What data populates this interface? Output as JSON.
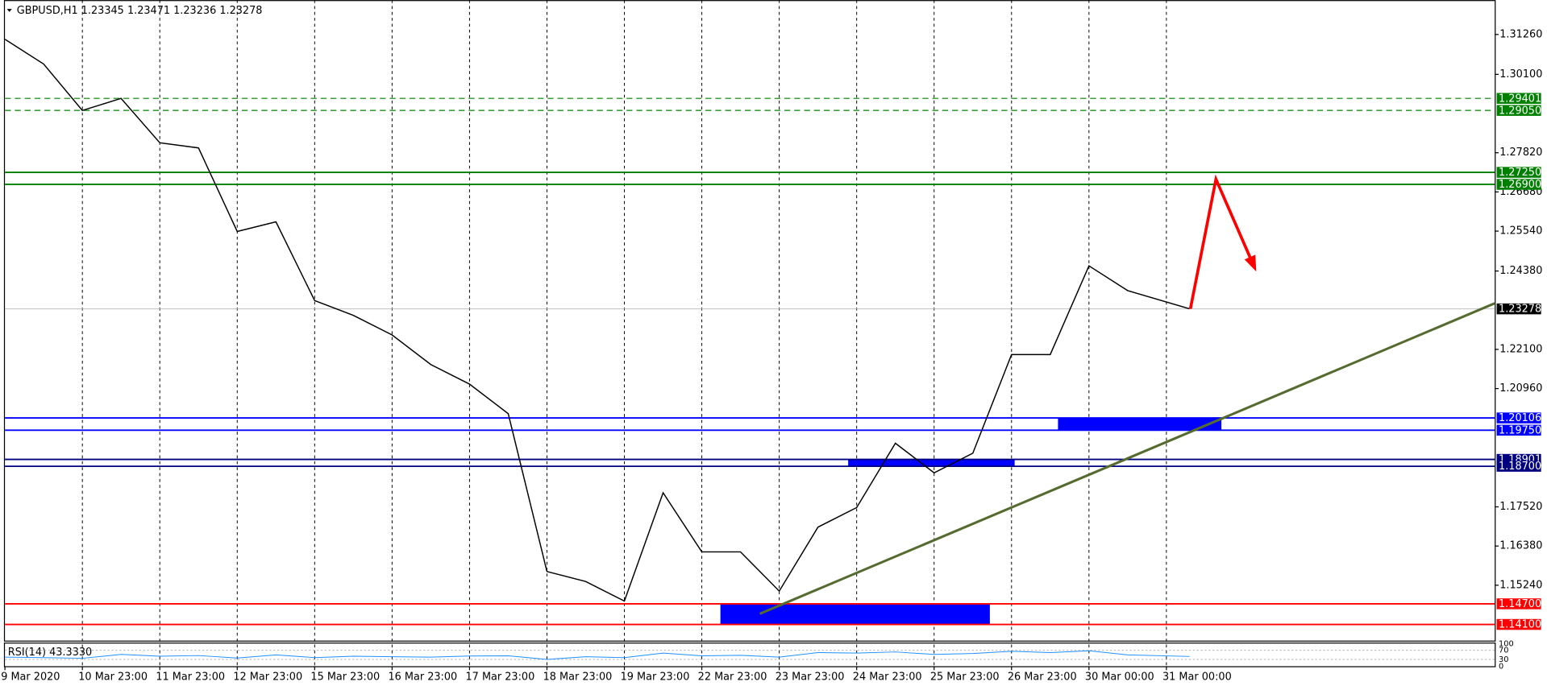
{
  "chart_data": {
    "type": "line",
    "title": "GBPUSD,H1  1.23345 1.23471 1.23236 1.23278",
    "x": [
      0,
      0.5,
      1,
      1.5,
      2,
      2.5,
      3,
      3.5,
      4,
      4.5,
      5,
      5.5,
      6,
      6.5,
      7,
      7.5,
      8,
      8.5,
      9,
      9.5,
      10,
      10.5,
      11,
      11.5,
      12,
      12.5,
      13,
      13.5,
      14,
      14.5,
      15.3
    ],
    "series": [
      {
        "color": "#000000",
        "values": [
          1.3112,
          1.304,
          1.2905,
          1.294,
          1.2811,
          1.2796,
          1.2553,
          1.2581,
          1.2352,
          1.2309,
          1.2252,
          1.2166,
          1.2109,
          1.2023,
          1.1564,
          1.1535,
          1.1478,
          1.1793,
          1.1621,
          1.1621,
          1.1507,
          1.1693,
          1.175,
          1.1937,
          1.1851,
          1.1908,
          1.2195,
          1.2195,
          1.2453,
          1.2381,
          1.2328
        ]
      }
    ],
    "xlim": [
      0,
      19.24
    ],
    "xticks": [
      {
        "value": 0,
        "label": "9 Mar 2020"
      },
      {
        "value": 1,
        "label": "10 Mar 23:00"
      },
      {
        "value": 2,
        "label": "11 Mar 23:00"
      },
      {
        "value": 3,
        "label": "12 Mar 23:00"
      },
      {
        "value": 4,
        "label": "15 Mar 23:00"
      },
      {
        "value": 5,
        "label": "16 Mar 23:00"
      },
      {
        "value": 6,
        "label": "17 Mar 23:00"
      },
      {
        "value": 7,
        "label": "18 Mar 23:00"
      },
      {
        "value": 8,
        "label": "19 Mar 23:00"
      },
      {
        "value": 9,
        "label": "22 Mar 23:00"
      },
      {
        "value": 10,
        "label": "23 Mar 23:00"
      },
      {
        "value": 11,
        "label": "24 Mar 23:00"
      },
      {
        "value": 12,
        "label": "25 Mar 23:00"
      },
      {
        "value": 13,
        "label": "26 Mar 23:00"
      },
      {
        "value": 14,
        "label": "30 Mar 00:00"
      },
      {
        "value": 15,
        "label": "31 Mar 00:00"
      }
    ],
    "ylim": [
      1.1363,
      1.3226
    ],
    "yticks": [
      {
        "value": 1.3126,
        "label": "1.31260"
      },
      {
        "value": 1.301,
        "label": "1.30100"
      },
      {
        "value": 1.2782,
        "label": "1.27820"
      },
      {
        "value": 1.2668,
        "label": "1.26680"
      },
      {
        "value": 1.2554,
        "label": "1.25540"
      },
      {
        "value": 1.2438,
        "label": "1.24380"
      },
      {
        "value": 1.221,
        "label": "1.22100"
      },
      {
        "value": 1.2096,
        "label": "1.20960"
      },
      {
        "value": 1.1752,
        "label": "1.17520"
      },
      {
        "value": 1.1638,
        "label": "1.16380"
      },
      {
        "value": 1.1524,
        "label": "1.15240"
      }
    ],
    "last": {
      "value": 1.23278,
      "label": "1.23278"
    },
    "levels": [
      {
        "value": 1.29401,
        "label": "1.29401",
        "color": "#008000",
        "style": "dashed"
      },
      {
        "value": 1.2905,
        "label": "1.29050",
        "color": "#008000",
        "style": "dashed"
      },
      {
        "value": 1.2725,
        "label": "1.27250",
        "color": "#008000",
        "style": "solid"
      },
      {
        "value": 1.269,
        "label": "1.26900",
        "color": "#008000",
        "style": "solid"
      },
      {
        "value": 1.20106,
        "label": "1.20106",
        "color": "#0000ff",
        "style": "solid"
      },
      {
        "value": 1.1975,
        "label": "1.19750",
        "color": "#0000ff",
        "style": "solid"
      },
      {
        "value": 1.18901,
        "label": "1.18901",
        "color": "#000080",
        "style": "solid"
      },
      {
        "value": 1.187,
        "label": "1.18700",
        "color": "#000080",
        "style": "solid"
      },
      {
        "value": 1.147,
        "label": "1.14700",
        "color": "#ff0000",
        "style": "solid"
      },
      {
        "value": 1.141,
        "label": "1.14100",
        "color": "#ff0000",
        "style": "solid"
      }
    ],
    "zones": [
      {
        "color": "#0000ff",
        "x": [
          13.6,
          15.71
        ],
        "values": [
          1.20106,
          1.1975
        ]
      },
      {
        "color": "#0000ff",
        "x": [
          10.89,
          13.04
        ],
        "values": [
          1.18901,
          1.187
        ]
      },
      {
        "color": "#0000ff",
        "x": [
          9.24,
          12.72
        ],
        "values": [
          1.147,
          1.141
        ]
      }
    ],
    "trendline": {
      "color": "#556b2f",
      "x": [
        9.75,
        19.24
      ],
      "values": [
        1.1441,
        1.2344
      ]
    },
    "forecast": {
      "color": "#ff0000",
      "x": [
        15.31,
        15.64,
        16.14
      ],
      "values": [
        1.2328,
        1.2705,
        1.2447
      ]
    },
    "rsi": {
      "label": "RSI(14) 43.3330",
      "color": "#1e90ff",
      "ylim": [
        0,
        100
      ],
      "yticks": [
        0,
        30,
        70,
        100
      ],
      "values": [
        40,
        38,
        35,
        52,
        44,
        47,
        36,
        50,
        38,
        44,
        42,
        40,
        45,
        46,
        30,
        42,
        38,
        58,
        46,
        48,
        40,
        60,
        58,
        63,
        52,
        56,
        66,
        60,
        68,
        50,
        43
      ]
    }
  }
}
